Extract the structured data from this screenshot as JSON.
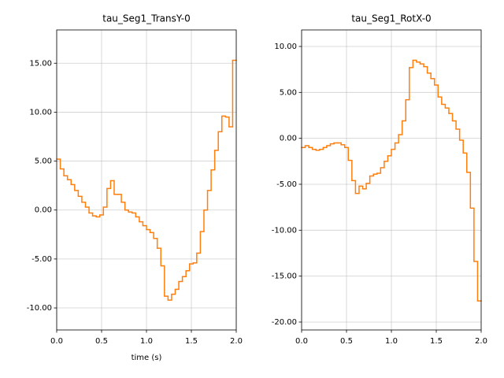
{
  "chart_data": [
    {
      "type": "step",
      "title": "tau_Seg1_TransY-0",
      "x_label": "time (s)",
      "color": "#ff7f0e",
      "grid": true,
      "x": [
        0,
        0.04,
        0.08,
        0.12,
        0.16,
        0.2,
        0.24,
        0.28,
        0.32,
        0.36,
        0.4,
        0.44,
        0.48,
        0.52,
        0.56,
        0.6,
        0.64,
        0.68,
        0.72,
        0.76,
        0.8,
        0.84,
        0.88,
        0.92,
        0.96,
        1.0,
        1.04,
        1.08,
        1.12,
        1.16,
        1.2,
        1.24,
        1.28,
        1.32,
        1.36,
        1.4,
        1.44,
        1.48,
        1.52,
        1.56,
        1.6,
        1.64,
        1.68,
        1.72,
        1.76,
        1.8,
        1.84,
        1.88,
        1.92,
        1.96
      ],
      "values": [
        5.2,
        4.2,
        3.5,
        3.1,
        2.6,
        2.0,
        1.4,
        0.8,
        0.3,
        -0.3,
        -0.6,
        -0.7,
        -0.5,
        0.3,
        2.2,
        3.0,
        1.6,
        1.6,
        0.8,
        0.0,
        -0.2,
        -0.3,
        -0.7,
        -1.2,
        -1.6,
        -2.0,
        -2.3,
        -2.9,
        -3.9,
        -5.7,
        -8.8,
        -9.2,
        -8.6,
        -8.1,
        -7.3,
        -6.8,
        -6.2,
        -5.5,
        -5.4,
        -4.4,
        -2.2,
        0.0,
        2.0,
        4.1,
        6.1,
        8.0,
        9.6,
        9.5,
        8.5,
        15.3
      ],
      "xlim": [
        0,
        2.0
      ],
      "ylim": [
        -12.25,
        18.4
      ],
      "xticks": [
        {
          "value": 0,
          "label": "0.0"
        },
        {
          "value": 0.5,
          "label": "0.5"
        },
        {
          "value": 1.0,
          "label": "1.0"
        },
        {
          "value": 1.5,
          "label": "1.5"
        },
        {
          "value": 2.0,
          "label": "2.0"
        }
      ],
      "yticks": [
        {
          "value": -10,
          "label": "-10.00"
        },
        {
          "value": -5,
          "label": "-5.00"
        },
        {
          "value": 0,
          "label": "0.00"
        },
        {
          "value": 5,
          "label": "5.00"
        },
        {
          "value": 10,
          "label": "10.00"
        },
        {
          "value": 15,
          "label": "15.00"
        }
      ]
    },
    {
      "type": "step",
      "title": "tau_Seg1_RotX-0",
      "color": "#ff7f0e",
      "grid": true,
      "x": [
        0,
        0.04,
        0.08,
        0.12,
        0.16,
        0.2,
        0.24,
        0.28,
        0.32,
        0.36,
        0.4,
        0.44,
        0.48,
        0.52,
        0.56,
        0.6,
        0.64,
        0.68,
        0.72,
        0.76,
        0.8,
        0.84,
        0.88,
        0.92,
        0.96,
        1.0,
        1.04,
        1.08,
        1.12,
        1.16,
        1.2,
        1.24,
        1.28,
        1.32,
        1.36,
        1.4,
        1.44,
        1.48,
        1.52,
        1.56,
        1.6,
        1.64,
        1.68,
        1.72,
        1.76,
        1.8,
        1.84,
        1.88,
        1.92,
        1.96
      ],
      "values": [
        -1.0,
        -0.8,
        -1.0,
        -1.2,
        -1.3,
        -1.2,
        -1.0,
        -0.8,
        -0.6,
        -0.5,
        -0.5,
        -0.7,
        -1.0,
        -2.4,
        -4.6,
        -6.0,
        -5.2,
        -5.5,
        -4.9,
        -4.1,
        -3.9,
        -3.8,
        -3.2,
        -2.5,
        -1.9,
        -1.2,
        -0.5,
        0.4,
        1.9,
        4.2,
        7.7,
        8.5,
        8.3,
        8.1,
        7.8,
        7.1,
        6.5,
        5.8,
        4.5,
        3.7,
        3.3,
        2.7,
        1.9,
        1.0,
        -0.2,
        -1.6,
        -3.7,
        -7.6,
        -13.4,
        -17.7
      ],
      "xlim": [
        0,
        2.0
      ],
      "ylim": [
        -20.86,
        11.8
      ],
      "xticks": [
        {
          "value": 0,
          "label": "0.0"
        },
        {
          "value": 0.5,
          "label": "0.5"
        },
        {
          "value": 1.0,
          "label": "1.0"
        },
        {
          "value": 1.5,
          "label": "1.5"
        },
        {
          "value": 2.0,
          "label": "2.0"
        }
      ],
      "yticks": [
        {
          "value": -20,
          "label": "-20.00"
        },
        {
          "value": -15,
          "label": "-15.00"
        },
        {
          "value": -10,
          "label": "-10.00"
        },
        {
          "value": -5,
          "label": "-5.00"
        },
        {
          "value": 0,
          "label": "0.00"
        },
        {
          "value": 5,
          "label": "5.00"
        },
        {
          "value": 10,
          "label": "10.00"
        }
      ]
    }
  ]
}
